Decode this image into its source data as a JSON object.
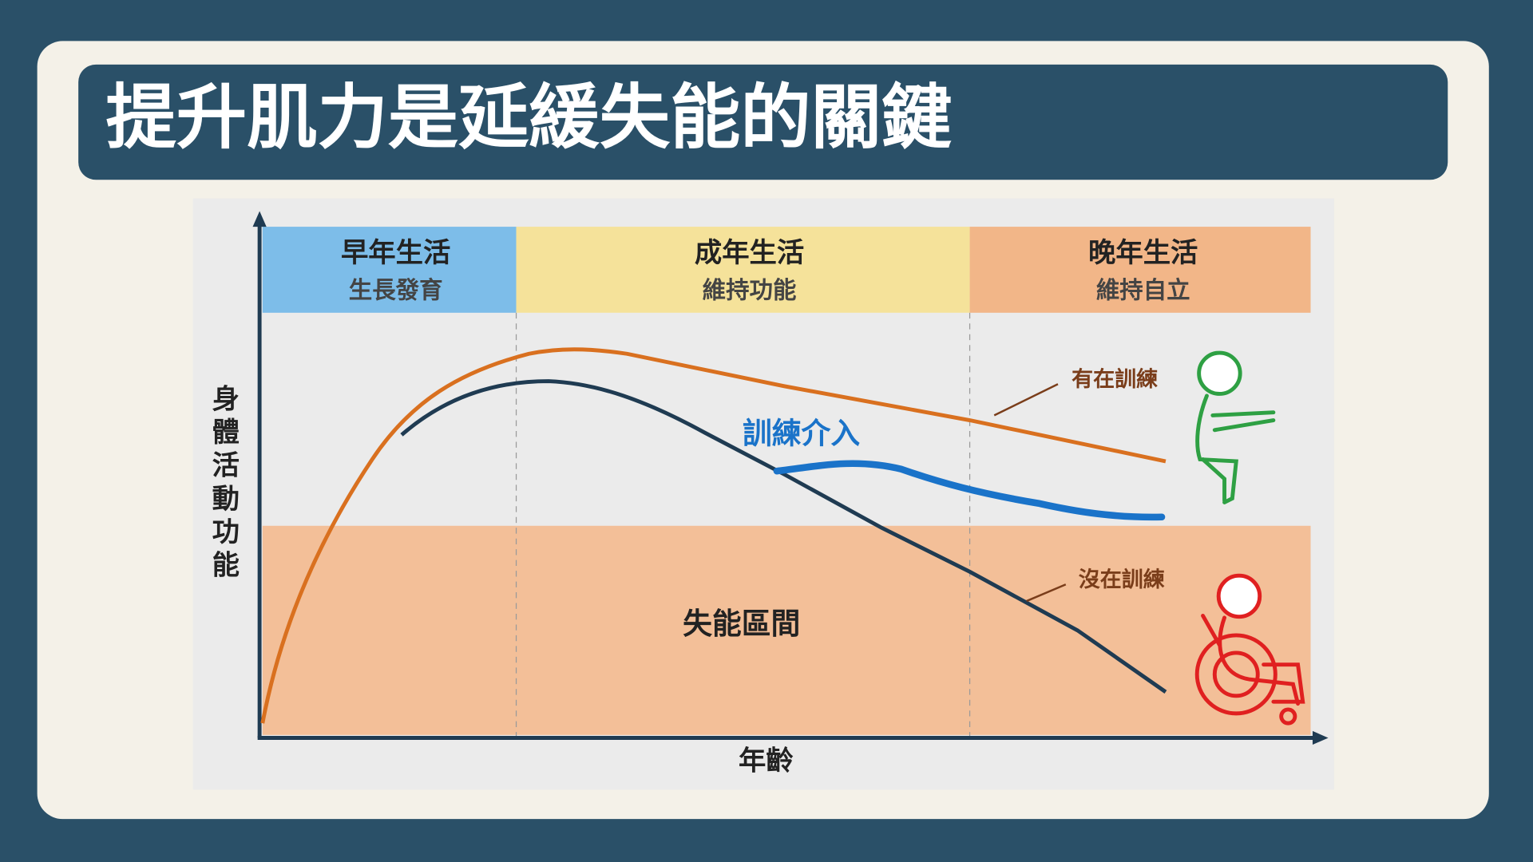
{
  "title": "提升肌力是延緩失能的關鍵",
  "stages": [
    {
      "heading": "早年生活",
      "subtitle": "生長發育"
    },
    {
      "heading": "成年生活",
      "subtitle": "維持功能"
    },
    {
      "heading": "晚年生活",
      "subtitle": "維持自立"
    }
  ],
  "y_axis_label": "身體活動功能",
  "x_axis_label": "年齡",
  "zone_label": "失能區間",
  "annotations": {
    "trained": "有在訓練",
    "untrained": "沒在訓練",
    "intervention": "訓練介入"
  }
}
